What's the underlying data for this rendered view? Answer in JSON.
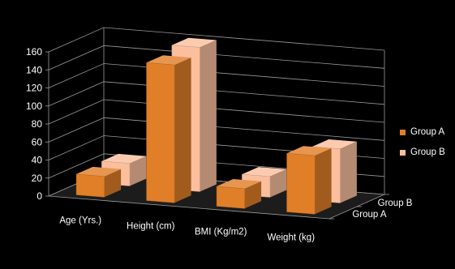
{
  "chart_data": {
    "type": "bar",
    "categories": [
      "Age (Yrs.)",
      "Height (cm)",
      "BMI (Kg/m2)",
      "Weight (kg)"
    ],
    "series": [
      {
        "name": "Group A",
        "values": [
          23,
          153,
          22,
          65
        ],
        "color": "#E07F28"
      },
      {
        "name": "Group B",
        "values": [
          25,
          160,
          23,
          60
        ],
        "color": "#FBBF9E"
      }
    ],
    "y_ticks": [
      0,
      20,
      40,
      60,
      80,
      100,
      120,
      140,
      160
    ],
    "ylim": [
      0,
      160
    ],
    "title": "",
    "xlabel": "",
    "ylabel": "",
    "grid": true,
    "legend_position": "right",
    "background": "#000000",
    "text_color": "#FFFFFF",
    "gridline_color": "#9A9A9A",
    "floor_color": "#1C1C1C"
  }
}
